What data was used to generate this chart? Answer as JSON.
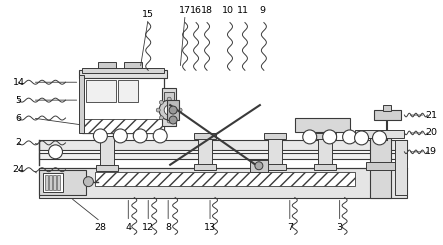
{
  "fig_width": 4.43,
  "fig_height": 2.45,
  "dpi": 100,
  "lc": "#3a3a3a",
  "lw": 0.8
}
